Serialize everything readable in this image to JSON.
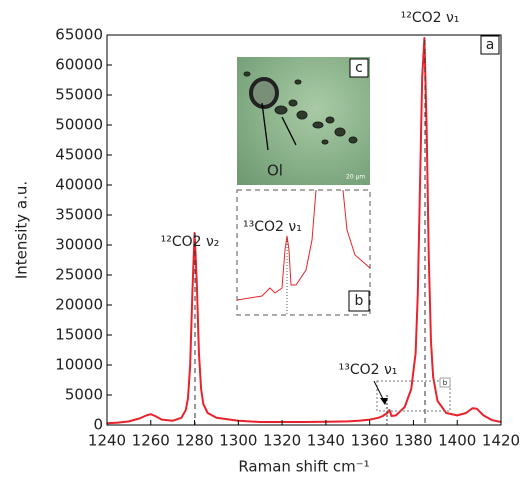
{
  "chart_data": {
    "type": "line",
    "x_label": "Raman shift cm⁻¹",
    "y_label": "Intensity a.u.",
    "x": [
      1240,
      1245,
      1250,
      1255,
      1258,
      1260,
      1262,
      1265,
      1270,
      1274,
      1276,
      1277,
      1278,
      1279,
      1280,
      1281,
      1282,
      1283,
      1284,
      1286,
      1290,
      1300,
      1310,
      1320,
      1330,
      1340,
      1350,
      1355,
      1360,
      1364,
      1366,
      1368,
      1369,
      1370,
      1372,
      1376,
      1379,
      1381,
      1382,
      1383,
      1384,
      1385,
      1386,
      1387,
      1388,
      1389,
      1391,
      1395,
      1400,
      1404,
      1407,
      1409,
      1412,
      1416,
      1420
    ],
    "series": [
      {
        "color": "#e8232b",
        "values": [
          300,
          400,
          600,
          1100,
          1600,
          1800,
          1500,
          900,
          700,
          1200,
          2500,
          4500,
          10000,
          22000,
          32000,
          24000,
          12000,
          6000,
          3500,
          2000,
          1200,
          700,
          500,
          500,
          500,
          550,
          600,
          700,
          900,
          1200,
          1500,
          2000,
          2500,
          1500,
          1600,
          3000,
          6000,
          12000,
          22000,
          40000,
          58000,
          64500,
          50000,
          28000,
          14000,
          8000,
          4000,
          2000,
          1600,
          2000,
          2800,
          2700,
          1600,
          800,
          500
        ]
      }
    ],
    "xlim": [
      1240,
      1420
    ],
    "xticks": [
      1240,
      1260,
      1280,
      1300,
      1320,
      1340,
      1360,
      1380,
      1400,
      1420
    ],
    "ylim": [
      0,
      65000
    ],
    "yticks": [
      0,
      5000,
      10000,
      15000,
      20000,
      25000,
      30000,
      35000,
      40000,
      45000,
      50000,
      55000,
      60000,
      65000
    ],
    "annotations": [
      "¹²CO2 ν₁",
      "¹²CO2 ν₂",
      "¹³CO2 ν₁",
      "a",
      "b",
      "c",
      "Ol",
      "20 μm",
      "¹³CO2 ν₁",
      "b"
    ]
  }
}
